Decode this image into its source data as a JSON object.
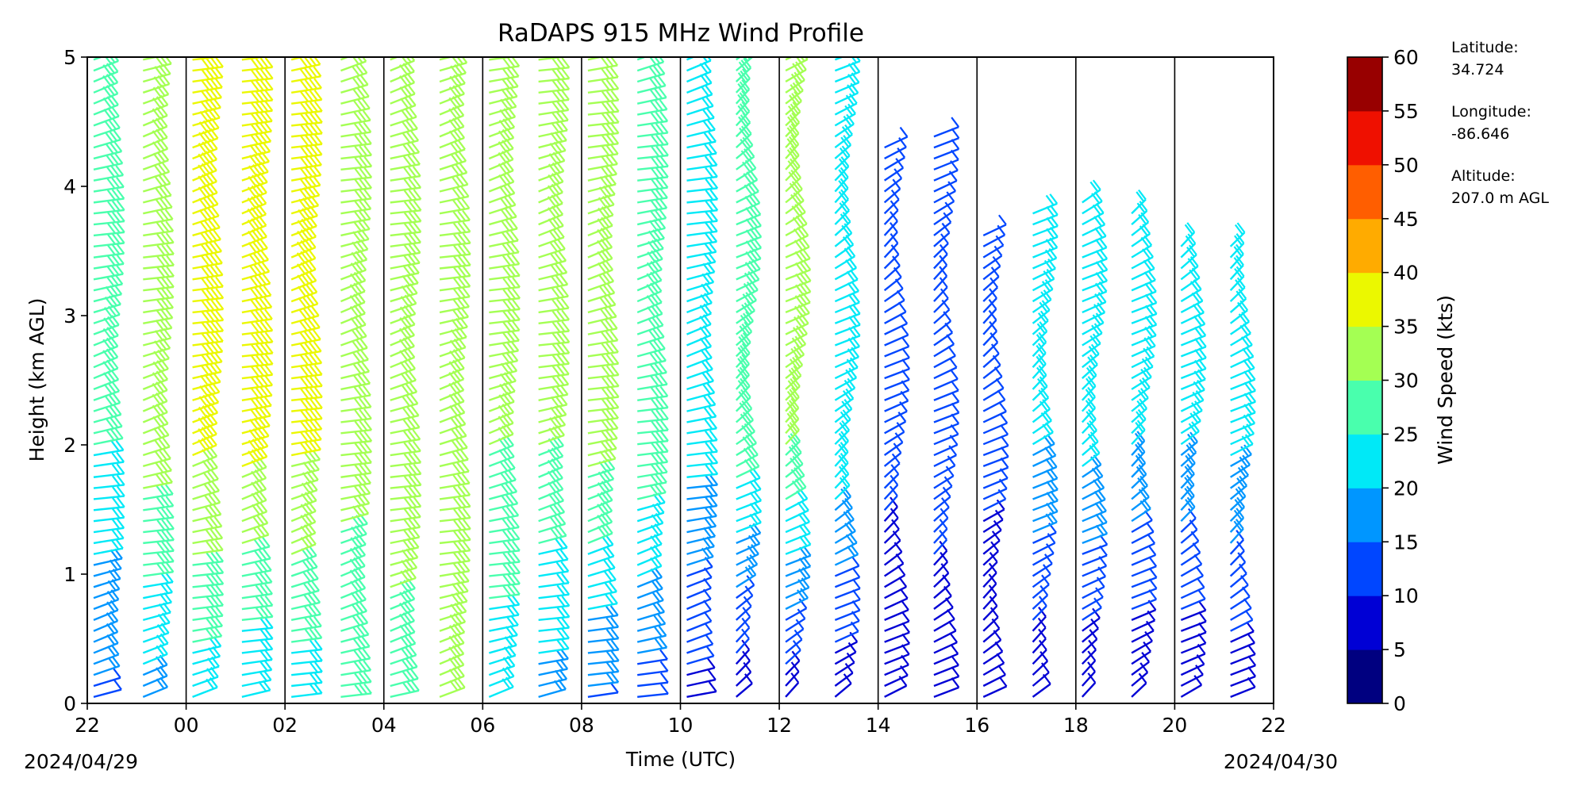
{
  "chart_data": {
    "type": "scatter",
    "title": "RaDAPS 915 MHz Wind Profile",
    "xlabel": "Time (UTC)",
    "ylabel": "Height (km AGL)",
    "x_tick_labels": [
      "22",
      "00",
      "02",
      "04",
      "06",
      "08",
      "10",
      "12",
      "14",
      "16",
      "18",
      "20",
      "22"
    ],
    "x_date_labels": [
      "2024/04/29",
      "2024/04/30"
    ],
    "x_range_utc": [
      "2024-04-29T22:00",
      "2024-04-30T22:00"
    ],
    "ylim": [
      0,
      5
    ],
    "y_ticks": [
      0,
      1,
      2,
      3,
      4,
      5
    ],
    "hour_divider_lines": true,
    "hour_columns_utc": [
      "22",
      "23",
      "00",
      "01",
      "02",
      "03",
      "04",
      "05",
      "06",
      "07",
      "08",
      "09",
      "10",
      "11",
      "12",
      "13",
      "14",
      "15",
      "16",
      "17",
      "18",
      "19",
      "20",
      "21"
    ],
    "mean_wind_speed_kts_by_hour": [
      {
        "hour": "22",
        "speed_low": 14,
        "speed_high": 25,
        "top_km": 5.0
      },
      {
        "hour": "23",
        "speed_low": 18,
        "speed_high": 33,
        "top_km": 5.0
      },
      {
        "hour": "00",
        "speed_low": 22,
        "speed_high": 36,
        "top_km": 5.0
      },
      {
        "hour": "01",
        "speed_low": 20,
        "speed_high": 37,
        "top_km": 5.0
      },
      {
        "hour": "02",
        "speed_low": 22,
        "speed_high": 36,
        "top_km": 5.0
      },
      {
        "hour": "03",
        "speed_low": 26,
        "speed_high": 32,
        "top_km": 5.0
      },
      {
        "hour": "04",
        "speed_low": 27,
        "speed_high": 34,
        "top_km": 5.0
      },
      {
        "hour": "05",
        "speed_low": 30,
        "speed_high": 33,
        "top_km": 5.0
      },
      {
        "hour": "06",
        "speed_low": 22,
        "speed_high": 30,
        "top_km": 5.0
      },
      {
        "hour": "07",
        "speed_low": 18,
        "speed_high": 30,
        "top_km": 5.0
      },
      {
        "hour": "08",
        "speed_low": 14,
        "speed_high": 32,
        "top_km": 5.0
      },
      {
        "hour": "09",
        "speed_low": 12,
        "speed_high": 29,
        "top_km": 5.0
      },
      {
        "hour": "10",
        "speed_low": 8,
        "speed_high": 22,
        "top_km": 5.0
      },
      {
        "hour": "11",
        "speed_low": 6,
        "speed_high": 28,
        "top_km": 5.0
      },
      {
        "hour": "12",
        "speed_low": 7,
        "speed_high": 30,
        "top_km": 5.0
      },
      {
        "hour": "13",
        "speed_low": 6,
        "speed_high": 24,
        "top_km": 5.0
      },
      {
        "hour": "14",
        "speed_low": 5,
        "speed_high": 12,
        "top_km": 4.3
      },
      {
        "hour": "15",
        "speed_low": 6,
        "speed_high": 13,
        "top_km": 4.4
      },
      {
        "hour": "16",
        "speed_low": 5,
        "speed_high": 12,
        "top_km": 3.7
      },
      {
        "hour": "17",
        "speed_low": 6,
        "speed_high": 20,
        "top_km": 3.8
      },
      {
        "hour": "18",
        "speed_low": 5,
        "speed_high": 22,
        "top_km": 3.9
      },
      {
        "hour": "19",
        "speed_low": 5,
        "speed_high": 20,
        "top_km": 3.8
      },
      {
        "hour": "20",
        "speed_low": 5,
        "speed_high": 20,
        "top_km": 3.6
      },
      {
        "hour": "21",
        "speed_low": 6,
        "speed_high": 21,
        "top_km": 3.6
      }
    ],
    "colorbar": {
      "label": "Wind Speed (kts)",
      "ticks": [
        "0",
        "5",
        "10",
        "15",
        "20",
        "25",
        "30",
        "35",
        "40",
        "45",
        "50",
        "55",
        "60"
      ],
      "bin_colors": [
        "#000080",
        "#0000d5",
        "#0046ff",
        "#0096ff",
        "#00e9f7",
        "#49ffad",
        "#a4ff53",
        "#ebf800",
        "#ffab00",
        "#ff5e00",
        "#ef1000",
        "#980000"
      ]
    },
    "station_info": {
      "latitude_label": "Latitude:",
      "latitude": "34.724",
      "longitude_label": "Longitude:",
      "longitude": "-86.646",
      "altitude_label": "Altitude:",
      "altitude": "207.0 m AGL"
    }
  }
}
